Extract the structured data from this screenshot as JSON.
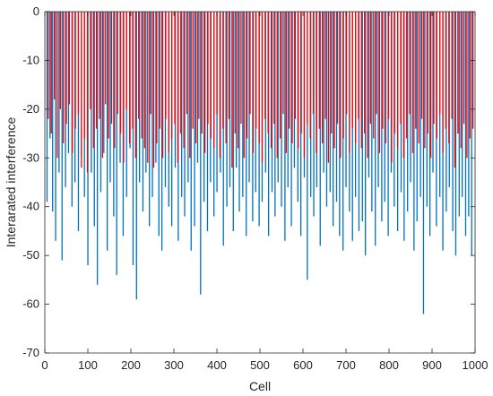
{
  "chart_data": {
    "type": "bar",
    "title": "",
    "xlabel": "Cell",
    "ylabel": "Interarated interference",
    "xlim": [
      0,
      1000
    ],
    "ylim": [
      -70,
      0
    ],
    "xticks": [
      0,
      100,
      200,
      300,
      400,
      500,
      600,
      700,
      800,
      900,
      1000
    ],
    "yticks": [
      0,
      -10,
      -20,
      -30,
      -40,
      -50,
      -60,
      -70
    ],
    "grid": false,
    "legend": "none",
    "series": [
      {
        "color": "#0072BD",
        "x": [
          5,
          12,
          18,
          25,
          33,
          40,
          48,
          55,
          63,
          70,
          78,
          85,
          92,
          100,
          108,
          115,
          122,
          130,
          137,
          145,
          152,
          160,
          167,
          175,
          182,
          190,
          198,
          205,
          213,
          220,
          228,
          235,
          243,
          250,
          258,
          265,
          272,
          280,
          288,
          295,
          303,
          310,
          318,
          325,
          333,
          340,
          348,
          355,
          362,
          370,
          378,
          385,
          393,
          400,
          408,
          415,
          423,
          430,
          438,
          445,
          452,
          460,
          468,
          475,
          483,
          490,
          498,
          505,
          513,
          520,
          528,
          535,
          542,
          550,
          558,
          565,
          573,
          580,
          588,
          595,
          603,
          610,
          618,
          625,
          632,
          640,
          648,
          655,
          663,
          670,
          678,
          685,
          693,
          700,
          708,
          715,
          722,
          730,
          738,
          745,
          753,
          760,
          768,
          775,
          783,
          790,
          798,
          805,
          812,
          820,
          828,
          835,
          843,
          850,
          858,
          865,
          873,
          880,
          888,
          895,
          902,
          910,
          918,
          925,
          933,
          940,
          948,
          955,
          963,
          970,
          978,
          985,
          992
        ],
        "values": [
          -39,
          -26,
          -41,
          -47,
          -33,
          -51,
          -36,
          -29,
          -40,
          -35,
          -45,
          -30,
          -38,
          -52,
          -33,
          -44,
          -56,
          -37,
          -29,
          -49,
          -35,
          -42,
          -54,
          -31,
          -46,
          -38,
          -28,
          -52,
          -59,
          -35,
          -41,
          -33,
          -44,
          -38,
          -31,
          -46,
          -49,
          -36,
          -40,
          -44,
          -32,
          -47,
          -38,
          -42,
          -35,
          -49,
          -44,
          -31,
          -58,
          -39,
          -45,
          -35,
          -42,
          -37,
          -33,
          -48,
          -40,
          -36,
          -45,
          -32,
          -41,
          -38,
          -46,
          -35,
          -43,
          -37,
          -44,
          -39,
          -33,
          -46,
          -37,
          -42,
          -35,
          -40,
          -47,
          -36,
          -44,
          -32,
          -39,
          -46,
          -34,
          -55,
          -38,
          -42,
          -36,
          -48,
          -33,
          -40,
          -37,
          -44,
          -39,
          -46,
          -49,
          -36,
          -41,
          -47,
          -38,
          -45,
          -43,
          -50,
          -34,
          -41,
          -48,
          -36,
          -43,
          -39,
          -46,
          -33,
          -40,
          -45,
          -37,
          -47,
          -41,
          -35,
          -49,
          -43,
          -38,
          -62,
          -40,
          -46,
          -33,
          -44,
          -38,
          -49,
          -41,
          -36,
          -45,
          -50,
          -42,
          -38,
          -46,
          -42,
          -50
        ]
      },
      {
        "color": "#FF0000",
        "x": [
          8,
          15,
          22,
          29,
          36,
          43,
          50,
          57,
          64,
          71,
          78,
          85,
          92,
          99,
          106,
          113,
          120,
          127,
          134,
          141,
          148,
          155,
          162,
          169,
          176,
          183,
          190,
          197,
          204,
          211,
          218,
          225,
          232,
          239,
          246,
          253,
          260,
          267,
          274,
          281,
          288,
          295,
          302,
          309,
          316,
          323,
          330,
          337,
          344,
          351,
          358,
          365,
          372,
          379,
          386,
          393,
          400,
          407,
          414,
          421,
          428,
          435,
          442,
          449,
          456,
          463,
          470,
          477,
          484,
          491,
          498,
          505,
          512,
          519,
          526,
          533,
          540,
          547,
          554,
          561,
          568,
          575,
          582,
          589,
          596,
          603,
          610,
          617,
          624,
          631,
          638,
          645,
          652,
          659,
          666,
          673,
          680,
          687,
          694,
          701,
          708,
          715,
          722,
          729,
          736,
          743,
          750,
          757,
          764,
          771,
          778,
          785,
          792,
          799,
          806,
          813,
          820,
          827,
          834,
          841,
          848,
          855,
          862,
          869,
          876,
          883,
          890,
          897,
          904,
          911,
          918,
          925,
          932,
          939,
          946,
          953,
          960,
          967,
          974,
          981,
          988,
          995
        ],
        "values": [
          -22,
          -25,
          -18,
          -30,
          -20,
          -27,
          -23,
          -19,
          -29,
          -24,
          -21,
          -32,
          -26,
          -33,
          -20,
          -28,
          -24,
          -22,
          -30,
          -19,
          -26,
          -23,
          -28,
          -21,
          -25,
          -31,
          -20,
          -27,
          -24,
          -30,
          -22,
          -26,
          -28,
          -31,
          -21,
          -32,
          -27,
          -24,
          -30,
          -22,
          -29,
          -26,
          -23,
          -31,
          -25,
          -28,
          -21,
          -30,
          -24,
          -27,
          -22,
          -25,
          -29,
          -23,
          -26,
          -28,
          -21,
          -30,
          -24,
          -27,
          -22,
          -32,
          -25,
          -28,
          -23,
          -30,
          -26,
          -21,
          -29,
          -24,
          -27,
          -31,
          -22,
          -25,
          -28,
          -23,
          -30,
          -26,
          -21,
          -29,
          -24,
          -27,
          -22,
          -28,
          -25,
          -30,
          -23,
          -26,
          -21,
          -29,
          -24,
          -27,
          -22,
          -31,
          -25,
          -28,
          -23,
          -30,
          -26,
          -21,
          -29,
          -24,
          -27,
          -22,
          -28,
          -25,
          -30,
          -23,
          -26,
          -21,
          -29,
          -24,
          -27,
          -22,
          -31,
          -25,
          -28,
          -23,
          -30,
          -26,
          -21,
          -29,
          -24,
          -27,
          -22,
          -28,
          -25,
          -30,
          -23,
          -26,
          -21,
          -29,
          -24,
          -27,
          -22,
          -32,
          -25,
          -28,
          -23,
          -30,
          -26,
          -24
        ]
      }
    ]
  }
}
